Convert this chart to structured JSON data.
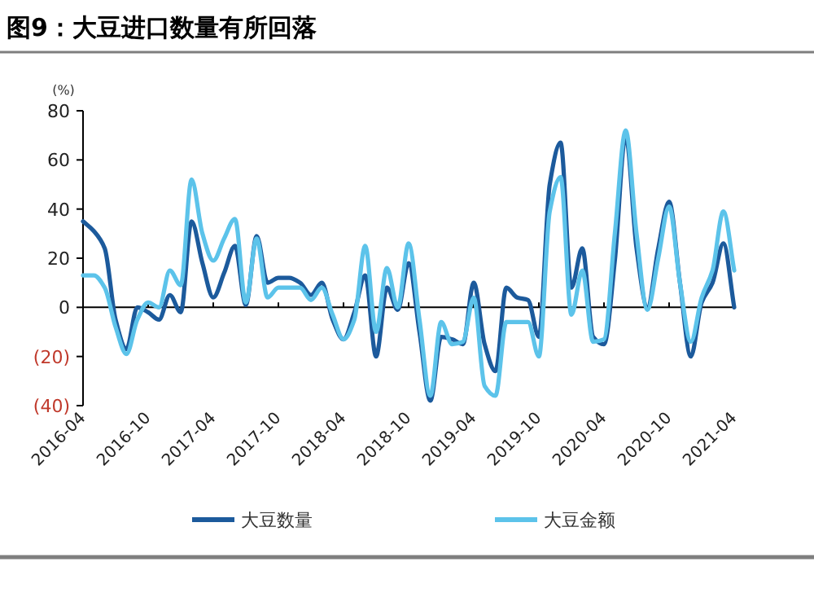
{
  "chart_data": {
    "type": "line",
    "title": "图9：大豆进口数量有所回落",
    "ylabel": "(%)",
    "legend": "bottom",
    "marker": "none",
    "line_style": "solid",
    "x": [
      "2016-04",
      "2016-05",
      "2016-06",
      "2016-07",
      "2016-08",
      "2016-09",
      "2016-10",
      "2016-11",
      "2016-12",
      "2017-01",
      "2017-02",
      "2017-03",
      "2017-04",
      "2017-05",
      "2017-06",
      "2017-07",
      "2017-08",
      "2017-09",
      "2017-10",
      "2017-11",
      "2017-12",
      "2018-01",
      "2018-02",
      "2018-03",
      "2018-04",
      "2018-05",
      "2018-06",
      "2018-07",
      "2018-08",
      "2018-09",
      "2018-10",
      "2018-11",
      "2018-12",
      "2019-01",
      "2019-02",
      "2019-03",
      "2019-04",
      "2019-05",
      "2019-06",
      "2019-07",
      "2019-08",
      "2019-09",
      "2019-10",
      "2019-11",
      "2019-12",
      "2020-01",
      "2020-02",
      "2020-03",
      "2020-04",
      "2020-05",
      "2020-06",
      "2020-07",
      "2020-08",
      "2020-09",
      "2020-10",
      "2020-11",
      "2020-12",
      "2021-01",
      "2021-02",
      "2021-03",
      "2021-04"
    ],
    "xlim": [
      "2016-04",
      "2021-04"
    ],
    "xticks": [
      "2016-04",
      "2016-10",
      "2017-04",
      "2017-10",
      "2018-04",
      "2018-10",
      "2019-04",
      "2019-10",
      "2020-04",
      "2020-10",
      "2021-04"
    ],
    "ylim": [
      -40,
      80
    ],
    "yticks": [
      {
        "value": -40,
        "label": "(40)"
      },
      {
        "value": -20,
        "label": "(20)"
      },
      0,
      20,
      40,
      60,
      80
    ],
    "series": [
      {
        "name": "大豆数量",
        "color": "#1c5a9c",
        "values": [
          35,
          31,
          24,
          -5,
          -17,
          0,
          -2,
          -5,
          5,
          -2,
          35,
          18,
          4,
          14,
          25,
          1,
          29,
          10,
          12,
          12,
          10,
          5,
          10,
          -5,
          -13,
          -2,
          13,
          -20,
          8,
          -1,
          18,
          -10,
          -38,
          -12,
          -13,
          -15,
          10,
          -15,
          -26,
          8,
          4,
          3,
          -12,
          50,
          67,
          8,
          24,
          -12,
          -15,
          19,
          70,
          24,
          0,
          24,
          43,
          10,
          -20,
          2,
          10,
          26,
          0
        ]
      },
      {
        "name": "大豆金额",
        "color": "#5cc3ea",
        "values": [
          13,
          13,
          8,
          -8,
          -19,
          -5,
          2,
          0,
          15,
          9,
          52,
          30,
          19,
          28,
          36,
          2,
          28,
          4,
          8,
          8,
          8,
          3,
          8,
          -3,
          -13,
          -5,
          25,
          -10,
          16,
          0,
          26,
          -5,
          -36,
          -6,
          -15,
          -14,
          4,
          -32,
          -36,
          -6,
          -6,
          -6,
          -20,
          39,
          53,
          -3,
          15,
          -14,
          -13,
          30,
          72,
          30,
          -1,
          20,
          41,
          10,
          -14,
          4,
          15,
          39,
          15
        ]
      }
    ]
  }
}
